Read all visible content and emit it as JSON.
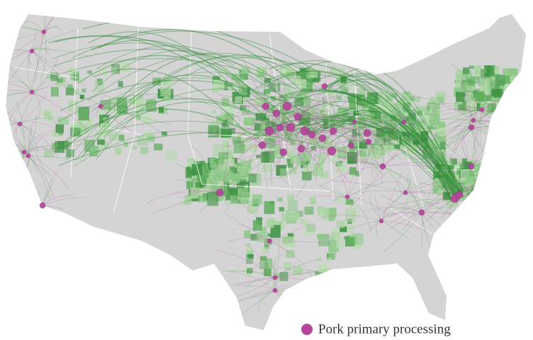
{
  "legend": {
    "label": "Pork primary processing",
    "color": "#b5449a"
  }
}
